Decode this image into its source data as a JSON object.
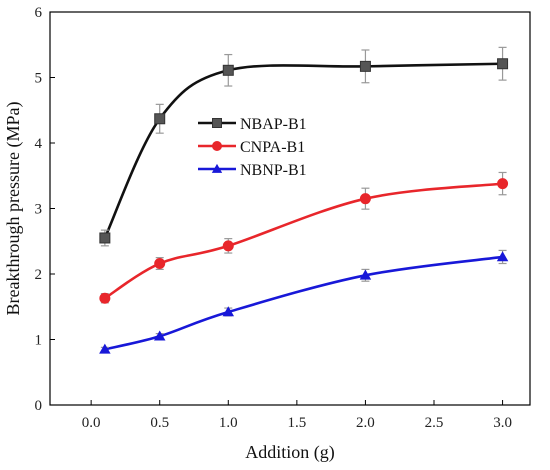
{
  "chart_data": {
    "type": "line",
    "title": "",
    "xlabel": "Addition (g)",
    "ylabel": "Breakthrough pressure (MPa)",
    "xlim": [
      -0.3,
      3.2
    ],
    "ylim": [
      0,
      6
    ],
    "xticks": [
      "0.0",
      "0.5",
      "1.0",
      "1.5",
      "2.0",
      "2.5",
      "3.0"
    ],
    "yticks": [
      "0",
      "1",
      "2",
      "3",
      "4",
      "5",
      "6"
    ],
    "grid": false,
    "legend_position": "center-left",
    "series": [
      {
        "name": "NBAP-B1",
        "color": "#111111",
        "marker": "square",
        "x": [
          0.1,
          0.5,
          1.0,
          2.0,
          3.0
        ],
        "y": [
          2.55,
          4.37,
          5.11,
          5.17,
          5.21
        ],
        "err": [
          0.12,
          0.22,
          0.24,
          0.25,
          0.25
        ]
      },
      {
        "name": "CNPA-B1",
        "color": "#e8262b",
        "marker": "circle",
        "x": [
          0.1,
          0.5,
          1.0,
          2.0,
          3.0
        ],
        "y": [
          1.63,
          2.16,
          2.43,
          3.15,
          3.38
        ],
        "err": [
          0.07,
          0.09,
          0.11,
          0.16,
          0.17
        ]
      },
      {
        "name": "NBNP-B1",
        "color": "#1818d8",
        "marker": "triangle",
        "x": [
          0.1,
          0.5,
          1.0,
          2.0,
          3.0
        ],
        "y": [
          0.85,
          1.05,
          1.42,
          1.98,
          2.26
        ],
        "err": [
          0.03,
          0.04,
          0.06,
          0.09,
          0.1
        ]
      }
    ]
  }
}
